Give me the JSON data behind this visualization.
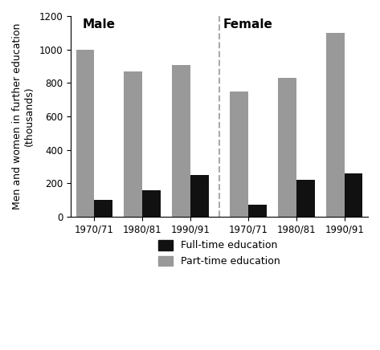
{
  "male_fulltime": [
    100,
    160,
    250
  ],
  "male_parttime": [
    1000,
    870,
    905
  ],
  "female_fulltime": [
    70,
    220,
    260
  ],
  "female_parttime": [
    750,
    830,
    1100
  ],
  "periods": [
    "1970/71",
    "1980/81",
    "1990/91"
  ],
  "ylabel_line1": "Men and women in further education",
  "ylabel_line2": "(thousands)",
  "ylim": [
    0,
    1200
  ],
  "yticks": [
    0,
    200,
    400,
    600,
    800,
    1000,
    1200
  ],
  "fulltime_color": "#111111",
  "parttime_color": "#999999",
  "bar_width": 0.38,
  "legend_labels": [
    "Full-time education",
    "Part-time education"
  ],
  "background_color": "#ffffff",
  "male_label": "Male",
  "female_label": "Female",
  "male_label_fontsize": 11,
  "female_label_fontsize": 11,
  "tick_fontsize": 8.5,
  "ylabel_fontsize": 9
}
